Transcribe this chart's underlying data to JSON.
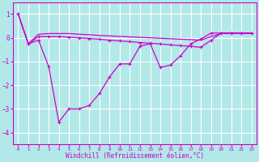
{
  "xlabel": "Windchill (Refroidissement éolien,°C)",
  "background_color": "#b2e8e8",
  "grid_color": "#ffffff",
  "line_color": "#cc00cc",
  "xlim": [
    -0.5,
    23.5
  ],
  "ylim": [
    -4.5,
    1.5
  ],
  "xticks": [
    0,
    1,
    2,
    3,
    4,
    5,
    6,
    7,
    8,
    9,
    10,
    11,
    12,
    13,
    14,
    15,
    16,
    17,
    18,
    19,
    20,
    21,
    22,
    23
  ],
  "yticks": [
    -4,
    -3,
    -2,
    -1,
    0,
    1
  ],
  "curve1_x": [
    0,
    1,
    2,
    3,
    4,
    5,
    6,
    7,
    8,
    9,
    10,
    11,
    12,
    13,
    14,
    15,
    16,
    17,
    18,
    19,
    20,
    21,
    22,
    23
  ],
  "curve1_y": [
    1.0,
    -0.25,
    -0.1,
    -1.2,
    -3.55,
    -3.0,
    -3.0,
    -2.85,
    -2.35,
    -1.65,
    -1.1,
    -1.1,
    -0.35,
    -0.25,
    -1.25,
    -1.15,
    -0.75,
    -0.25,
    -0.05,
    0.2,
    0.2,
    0.2,
    0.2,
    0.2
  ],
  "curve2_x": [
    0,
    1,
    2,
    3,
    4,
    5,
    6,
    7,
    8,
    9,
    10,
    11,
    12,
    13,
    14,
    15,
    16,
    17,
    18,
    19,
    20,
    21,
    22,
    23
  ],
  "curve2_y": [
    1.0,
    -0.25,
    0.05,
    0.05,
    0.05,
    0.03,
    0.0,
    -0.03,
    -0.06,
    -0.1,
    -0.13,
    -0.16,
    -0.2,
    -0.23,
    -0.26,
    -0.3,
    -0.33,
    -0.36,
    -0.4,
    -0.1,
    0.2,
    0.2,
    0.2,
    0.2
  ],
  "curve3_x": [
    0,
    1,
    2,
    3,
    4,
    5,
    6,
    7,
    8,
    9,
    10,
    11,
    12,
    13,
    14,
    15,
    16,
    17,
    18,
    19,
    20,
    21,
    22,
    23
  ],
  "curve3_y": [
    1.0,
    -0.25,
    0.15,
    0.18,
    0.18,
    0.18,
    0.15,
    0.13,
    0.1,
    0.08,
    0.06,
    0.04,
    0.02,
    0.0,
    -0.02,
    -0.04,
    -0.06,
    -0.08,
    -0.1,
    0.05,
    0.18,
    0.18,
    0.18,
    0.18
  ]
}
